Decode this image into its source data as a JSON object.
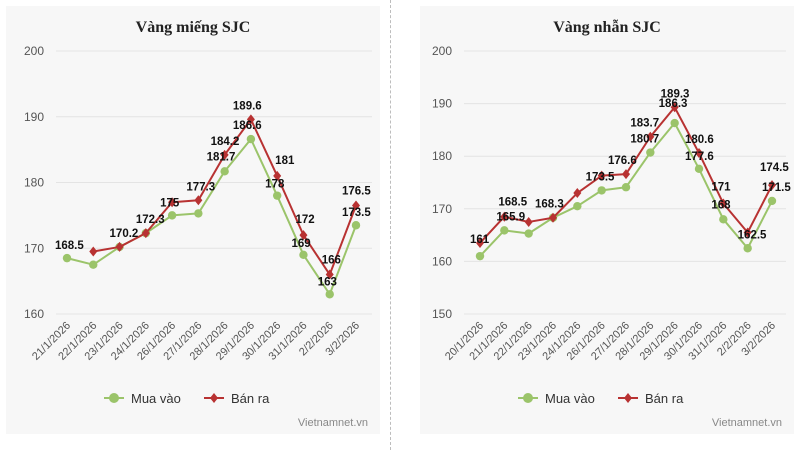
{
  "chart_data": [
    {
      "type": "line",
      "title": "Vàng miếng SJC",
      "xlabel": "",
      "ylabel": "",
      "categories": [
        "21/1/2026",
        "22/1/2026",
        "23/1/2026",
        "24/1/2026",
        "26/1/2026",
        "27/1/2026",
        "28/1/2026",
        "29/1/2026",
        "30/1/2026",
        "31/1/2026",
        "2/2/2026",
        "3/2/2026"
      ],
      "yticks": [
        160,
        170,
        180,
        190,
        200
      ],
      "ylim": [
        160,
        200
      ],
      "grid": true,
      "legend": "bottom",
      "series": [
        {
          "name": "Mua vào",
          "color": "#9bc46a",
          "marker": "circle",
          "values": [
            168.5,
            167.5,
            170.2,
            172.3,
            175,
            175.3,
            181.7,
            186.6,
            178,
            169,
            163,
            173.5
          ],
          "labels": [
            "168.5",
            "",
            "",
            "",
            "175",
            "",
            "181.7",
            "186.6",
            "178",
            "169",
            "163",
            "173.5"
          ]
        },
        {
          "name": "Bán ra",
          "color": "#b83232",
          "marker": "diamond",
          "values": [
            null,
            169.5,
            170.2,
            172.3,
            177,
            177.3,
            184.2,
            189.6,
            181,
            172,
            166,
            176.5
          ],
          "labels": [
            "",
            "",
            "170.2",
            "172.3",
            "",
            "177.3",
            "184.2",
            "189.6",
            "181",
            "172",
            "166",
            "176.5"
          ]
        }
      ],
      "credit": "Vietnamnet.vn"
    },
    {
      "type": "line",
      "title": "Vàng nhẫn SJC",
      "xlabel": "",
      "ylabel": "",
      "categories": [
        "20/1/2026",
        "21/1/2026",
        "22/1/2026",
        "23/1/2026",
        "24/1/2026",
        "26/1/2026",
        "27/1/2026",
        "28/1/2026",
        "29/1/2026",
        "30/1/2026",
        "31/1/2026",
        "2/2/2026",
        "3/2/2026"
      ],
      "yticks": [
        150,
        160,
        170,
        180,
        190,
        200
      ],
      "ylim": [
        150,
        200
      ],
      "grid": true,
      "legend": "bottom",
      "series": [
        {
          "name": "Mua vào",
          "color": "#9bc46a",
          "marker": "circle",
          "values": [
            161,
            165.9,
            165.3,
            168.3,
            170.5,
            173.5,
            174.1,
            180.7,
            186.3,
            177.6,
            168,
            162.5,
            171.5
          ],
          "labels": [
            "161",
            "165.9",
            "",
            "",
            "",
            "173.5",
            "",
            "180.7",
            "186.3",
            "177.6",
            "168",
            "162.5",
            "171.5"
          ]
        },
        {
          "name": "Bán ra",
          "color": "#b83232",
          "marker": "diamond",
          "values": [
            163.5,
            168.5,
            167.5,
            168.3,
            173,
            176.3,
            176.6,
            183.7,
            189.3,
            180.6,
            171,
            165.5,
            174.5
          ],
          "labels": [
            "",
            "168.5",
            "",
            "168.3",
            "",
            "",
            "176.6",
            "183.7",
            "189.3",
            "180.6",
            "171",
            "",
            "174.5"
          ]
        }
      ],
      "credit": "Vietnamnet.vn"
    }
  ]
}
